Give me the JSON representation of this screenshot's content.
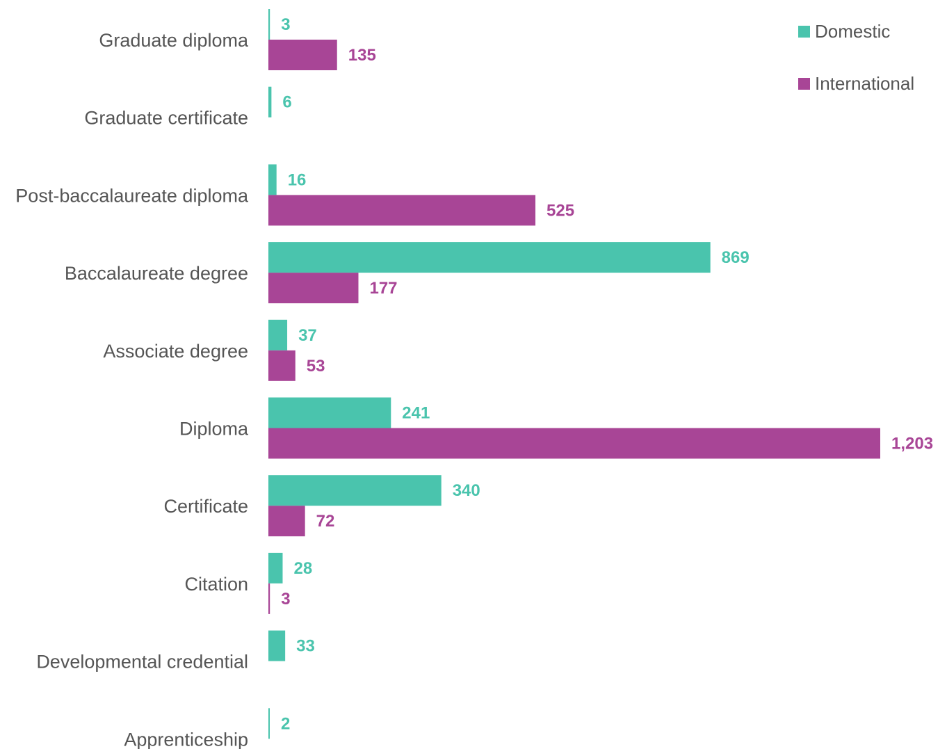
{
  "chart_data": {
    "type": "bar",
    "orientation": "horizontal",
    "categories": [
      "Graduate diploma",
      "Graduate certificate",
      "Post-baccalaureate diploma",
      "Baccalaureate degree",
      "Associate degree",
      "Diploma",
      "Certificate",
      "Citation",
      "Developmental credential",
      "Apprenticeship"
    ],
    "series": [
      {
        "name": "Domestic",
        "color": "#4ac4ad",
        "values": [
          3,
          6,
          16,
          869,
          37,
          241,
          340,
          28,
          33,
          2
        ],
        "labels": [
          "3",
          "6",
          "16",
          "869",
          "37",
          "241",
          "340",
          "28",
          "33",
          "2"
        ]
      },
      {
        "name": "International",
        "color": "#a84596",
        "values": [
          135,
          null,
          525,
          177,
          53,
          1203,
          72,
          3,
          null,
          null
        ],
        "labels": [
          "135",
          "",
          "525",
          "177",
          "53",
          "1,203",
          "72",
          "3",
          "",
          ""
        ]
      }
    ],
    "xlim": [
      0,
      1203
    ],
    "grid": false,
    "legend_position": "top-right",
    "title": "",
    "xlabel": "",
    "ylabel": ""
  }
}
